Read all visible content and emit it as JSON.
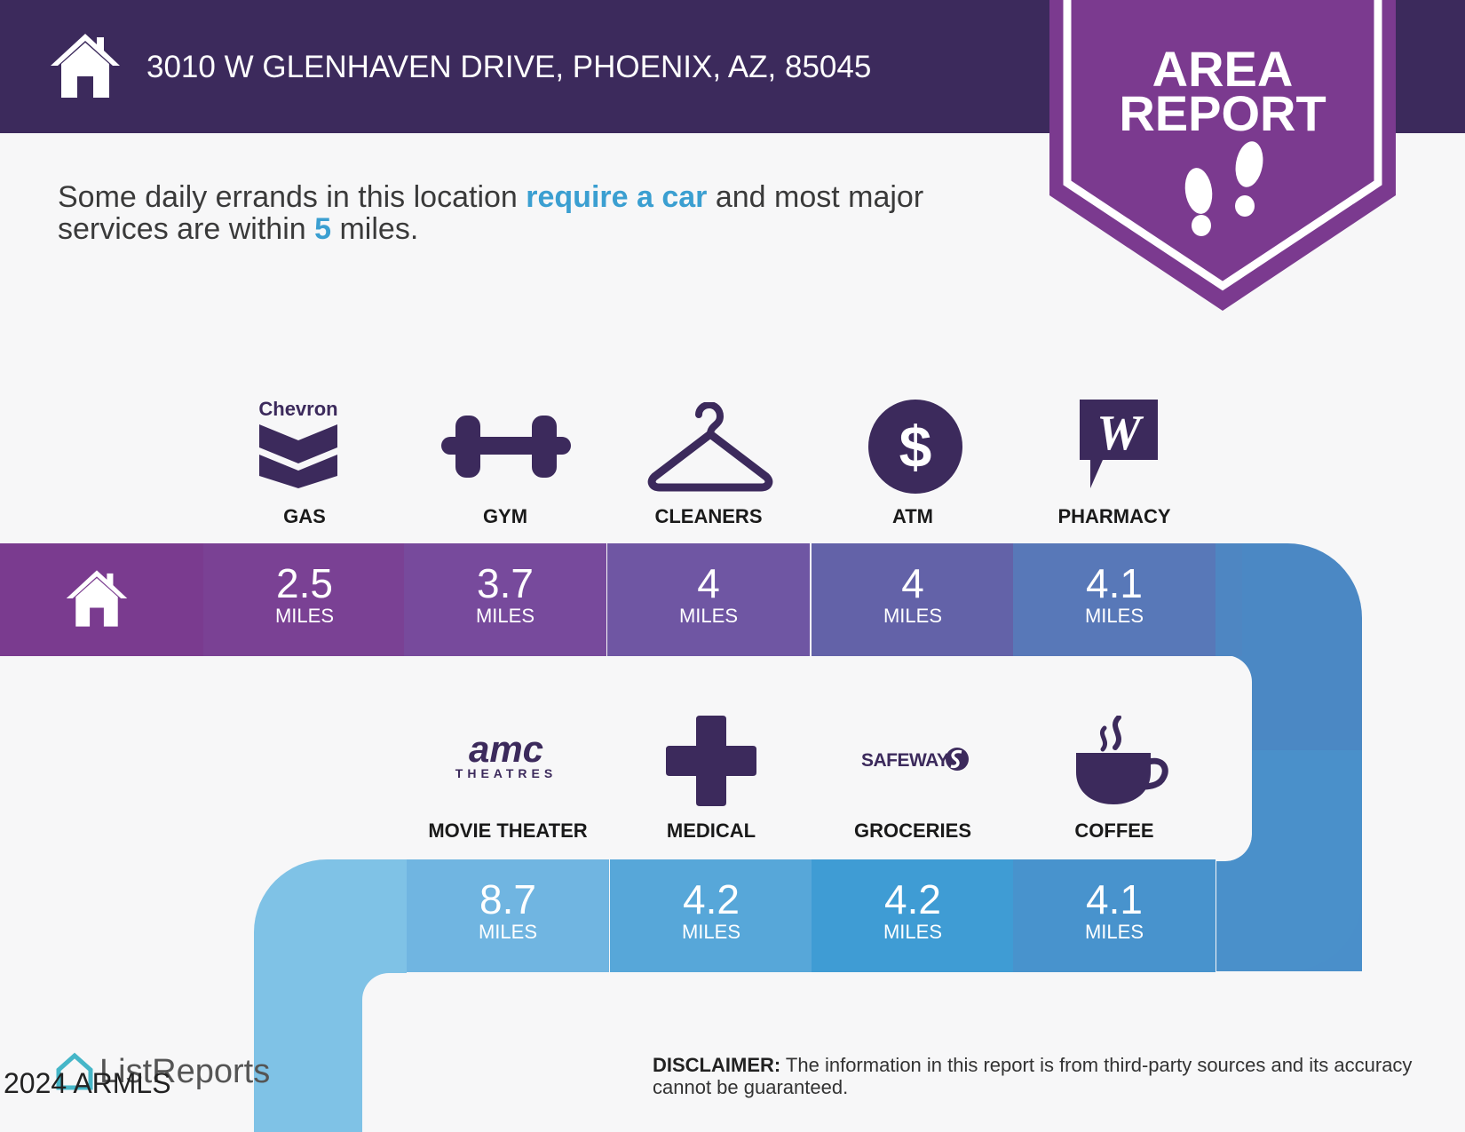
{
  "header": {
    "address": "3010 W GLENHAVEN DRIVE, PHOENIX, AZ, 85045",
    "badge_line1": "AREA",
    "badge_line2": "REPORT"
  },
  "intro": {
    "part1": "Some daily errands in this location ",
    "highlight1": "require a car",
    "part2": " and most major services are within ",
    "highlight2": "5",
    "part3": " miles."
  },
  "row1": [
    {
      "label": "GAS",
      "value": "2.5",
      "unit": "MILES",
      "icon": "chevron-logo",
      "logo_text": "Chevron"
    },
    {
      "label": "GYM",
      "value": "3.7",
      "unit": "MILES",
      "icon": "dumbbell-icon"
    },
    {
      "label": "CLEANERS",
      "value": "4",
      "unit": "MILES",
      "icon": "hanger-icon"
    },
    {
      "label": "ATM",
      "value": "4",
      "unit": "MILES",
      "icon": "dollar-icon"
    },
    {
      "label": "PHARMACY",
      "value": "4.1",
      "unit": "MILES",
      "icon": "walgreens-logo"
    }
  ],
  "row2": [
    {
      "label": "MOVIE THEATER",
      "value": "8.7",
      "unit": "MILES",
      "icon": "amc-logo",
      "logo_text": "amc",
      "logo_sub": "THEATRES"
    },
    {
      "label": "MEDICAL",
      "value": "4.2",
      "unit": "MILES",
      "icon": "medical-cross-icon"
    },
    {
      "label": "GROCERIES",
      "value": "4.2",
      "unit": "MILES",
      "icon": "safeway-logo",
      "logo_text": "SAFEWAY"
    },
    {
      "label": "COFFEE",
      "value": "4.1",
      "unit": "MILES",
      "icon": "coffee-icon"
    }
  ],
  "colors": {
    "header_bg": "#3c2a5c",
    "badge": "#7b3a8f",
    "icon": "#3c2a5c",
    "highlight": "#3b9fd1"
  },
  "disclaimer": {
    "label": "DISCLAIMER:",
    "text": " The information in this report is from third-party sources and its accuracy cannot be guaranteed."
  },
  "footer": {
    "brand": "ListReports",
    "copyright": "2024 ARMLS"
  }
}
